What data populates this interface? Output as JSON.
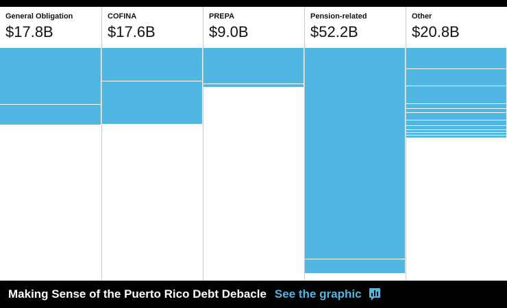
{
  "accent_color": "#52b6e2",
  "chart_data": {
    "type": "bar",
    "title": "",
    "xlabel": "",
    "ylabel": "",
    "ylim": [
      0,
      54.0
    ],
    "categories": [
      "General Obligation",
      "COFINA",
      "PREPA",
      "Pension-related",
      "Other"
    ],
    "values": [
      17.8,
      17.6,
      9.0,
      52.2,
      20.8
    ],
    "value_labels": [
      "$17.8B",
      "$17.6B",
      "$9.0B",
      "$52.2B",
      "$20.8B"
    ],
    "segment_breaks": [
      [
        13.1
      ],
      [
        7.7
      ],
      [
        8.3
      ],
      [
        48.9
      ],
      [
        4.7,
        8.7,
        12.9,
        13.9,
        15.0,
        16.6,
        18.0,
        18.9,
        19.6,
        20.2
      ]
    ]
  },
  "footer": {
    "title": "Making Sense of the Puerto Rico Debt Debacle",
    "link": "See the graphic",
    "icon": "bar-chart-icon"
  }
}
